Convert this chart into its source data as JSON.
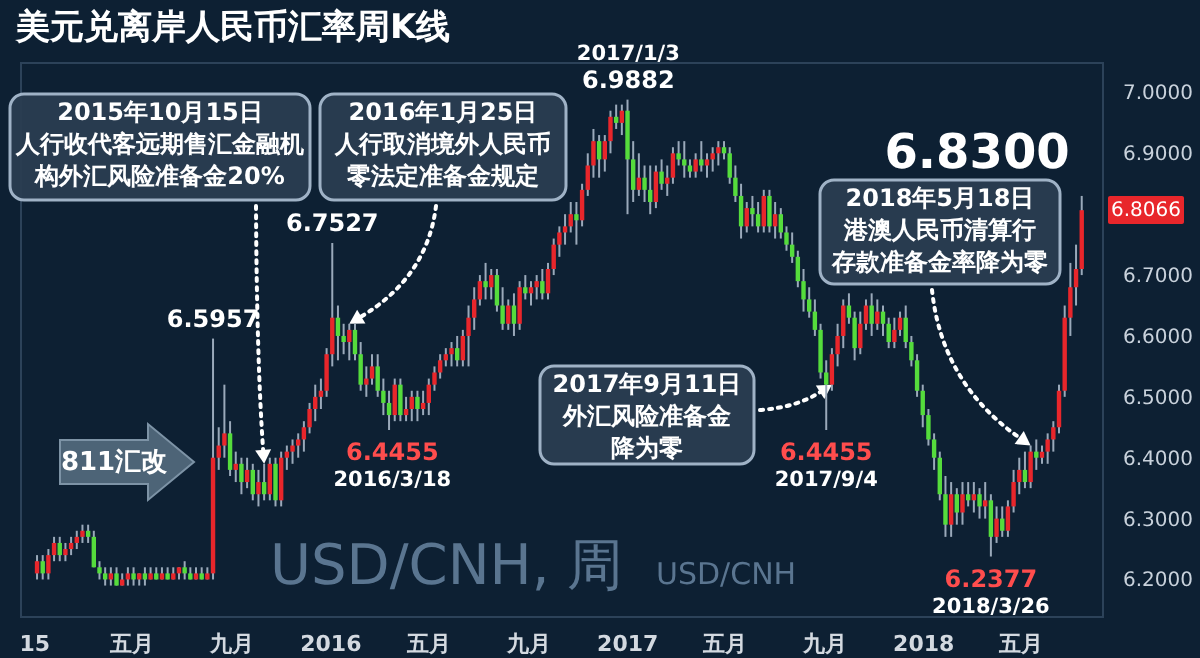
{
  "chart_data": {
    "type": "candlestick",
    "title": "美元兑离岸人民币汇率周K线",
    "x": [
      "2015-01-05",
      "2015-01-12",
      "2015-01-19",
      "2015-01-26",
      "2015-02-02",
      "2015-02-09",
      "2015-02-16",
      "2015-02-23",
      "2015-03-02",
      "2015-03-09",
      "2015-03-16",
      "2015-03-23",
      "2015-03-30",
      "2015-04-06",
      "2015-04-13",
      "2015-04-20",
      "2015-04-27",
      "2015-05-04",
      "2015-05-11",
      "2015-05-18",
      "2015-05-25",
      "2015-06-01",
      "2015-06-08",
      "2015-06-15",
      "2015-06-22",
      "2015-06-29",
      "2015-07-06",
      "2015-07-13",
      "2015-07-20",
      "2015-07-27",
      "2015-08-03",
      "2015-08-10",
      "2015-08-17",
      "2015-08-24",
      "2015-08-31",
      "2015-09-07",
      "2015-09-14",
      "2015-09-21",
      "2015-09-28",
      "2015-10-05",
      "2015-10-12",
      "2015-10-19",
      "2015-10-26",
      "2015-11-02",
      "2015-11-09",
      "2015-11-16",
      "2015-11-23",
      "2015-11-30",
      "2015-12-07",
      "2015-12-14",
      "2015-12-21",
      "2015-12-28",
      "2016-01-04",
      "2016-01-11",
      "2016-01-18",
      "2016-01-25",
      "2016-02-01",
      "2016-02-08",
      "2016-02-15",
      "2016-02-22",
      "2016-02-29",
      "2016-03-07",
      "2016-03-14",
      "2016-03-21",
      "2016-03-28",
      "2016-04-04",
      "2016-04-11",
      "2016-04-18",
      "2016-04-25",
      "2016-05-02",
      "2016-05-09",
      "2016-05-16",
      "2016-05-23",
      "2016-05-30",
      "2016-06-06",
      "2016-06-13",
      "2016-06-20",
      "2016-06-27",
      "2016-07-04",
      "2016-07-11",
      "2016-07-18",
      "2016-07-25",
      "2016-08-01",
      "2016-08-08",
      "2016-08-15",
      "2016-08-22",
      "2016-08-29",
      "2016-09-05",
      "2016-09-12",
      "2016-09-19",
      "2016-09-26",
      "2016-10-03",
      "2016-10-10",
      "2016-10-17",
      "2016-10-24",
      "2016-10-31",
      "2016-11-07",
      "2016-11-14",
      "2016-11-21",
      "2016-11-28",
      "2016-12-05",
      "2016-12-12",
      "2016-12-19",
      "2016-12-26",
      "2017-01-02",
      "2017-01-09",
      "2017-01-16",
      "2017-01-23",
      "2017-01-30",
      "2017-02-06",
      "2017-02-13",
      "2017-02-20",
      "2017-02-27",
      "2017-03-06",
      "2017-03-13",
      "2017-03-20",
      "2017-03-27",
      "2017-04-03",
      "2017-04-10",
      "2017-04-17",
      "2017-04-24",
      "2017-05-01",
      "2017-05-08",
      "2017-05-15",
      "2017-05-22",
      "2017-05-29",
      "2017-06-05",
      "2017-06-12",
      "2017-06-19",
      "2017-06-26",
      "2017-07-03",
      "2017-07-10",
      "2017-07-17",
      "2017-07-24",
      "2017-07-31",
      "2017-08-07",
      "2017-08-14",
      "2017-08-21",
      "2017-08-28",
      "2017-09-04",
      "2017-09-11",
      "2017-09-18",
      "2017-09-25",
      "2017-10-02",
      "2017-10-09",
      "2017-10-16",
      "2017-10-23",
      "2017-10-30",
      "2017-11-06",
      "2017-11-13",
      "2017-11-20",
      "2017-11-27",
      "2017-12-04",
      "2017-12-11",
      "2017-12-18",
      "2017-12-25",
      "2018-01-01",
      "2018-01-08",
      "2018-01-15",
      "2018-01-22",
      "2018-01-29",
      "2018-02-05",
      "2018-02-12",
      "2018-02-19",
      "2018-02-26",
      "2018-03-05",
      "2018-03-12",
      "2018-03-19",
      "2018-03-26",
      "2018-04-02",
      "2018-04-09",
      "2018-04-16",
      "2018-04-23",
      "2018-04-30",
      "2018-05-07",
      "2018-05-14",
      "2018-05-21",
      "2018-05-28",
      "2018-06-04",
      "2018-06-11",
      "2018-06-18",
      "2018-06-25",
      "2018-07-02",
      "2018-07-09",
      "2018-07-16"
    ],
    "ohlc": [
      [
        6.21,
        6.24,
        6.2,
        6.23
      ],
      [
        6.23,
        6.24,
        6.2,
        6.21
      ],
      [
        6.21,
        6.25,
        6.2,
        6.24
      ],
      [
        6.24,
        6.27,
        6.23,
        6.26
      ],
      [
        6.26,
        6.27,
        6.23,
        6.24
      ],
      [
        6.24,
        6.26,
        6.23,
        6.25
      ],
      [
        6.25,
        6.27,
        6.24,
        6.26
      ],
      [
        6.26,
        6.28,
        6.25,
        6.27
      ],
      [
        6.27,
        6.29,
        6.26,
        6.28
      ],
      [
        6.28,
        6.29,
        6.26,
        6.27
      ],
      [
        6.27,
        6.28,
        6.22,
        6.22
      ],
      [
        6.22,
        6.23,
        6.2,
        6.21
      ],
      [
        6.21,
        6.22,
        6.19,
        6.2
      ],
      [
        6.2,
        6.22,
        6.19,
        6.21
      ],
      [
        6.21,
        6.22,
        6.19,
        6.19
      ],
      [
        6.19,
        6.21,
        6.19,
        6.2
      ],
      [
        6.2,
        6.22,
        6.19,
        6.21
      ],
      [
        6.21,
        6.22,
        6.19,
        6.2
      ],
      [
        6.2,
        6.21,
        6.19,
        6.21
      ],
      [
        6.21,
        6.22,
        6.19,
        6.2
      ],
      [
        6.2,
        6.22,
        6.2,
        6.21
      ],
      [
        6.21,
        6.22,
        6.2,
        6.2
      ],
      [
        6.2,
        6.22,
        6.2,
        6.21
      ],
      [
        6.21,
        6.22,
        6.2,
        6.2
      ],
      [
        6.2,
        6.22,
        6.2,
        6.21
      ],
      [
        6.21,
        6.22,
        6.2,
        6.22
      ],
      [
        6.22,
        6.23,
        6.2,
        6.21
      ],
      [
        6.21,
        6.22,
        6.2,
        6.2
      ],
      [
        6.2,
        6.22,
        6.2,
        6.21
      ],
      [
        6.21,
        6.22,
        6.2,
        6.2
      ],
      [
        6.2,
        6.22,
        6.2,
        6.21
      ],
      [
        6.21,
        6.5957,
        6.2,
        6.4
      ],
      [
        6.4,
        6.45,
        6.38,
        6.42
      ],
      [
        6.42,
        6.52,
        6.4,
        6.44
      ],
      [
        6.44,
        6.46,
        6.37,
        6.38
      ],
      [
        6.38,
        6.41,
        6.36,
        6.39
      ],
      [
        6.39,
        6.4,
        6.34,
        6.36
      ],
      [
        6.36,
        6.4,
        6.35,
        6.38
      ],
      [
        6.38,
        6.39,
        6.33,
        6.34
      ],
      [
        6.34,
        6.38,
        6.32,
        6.36
      ],
      [
        6.36,
        6.39,
        6.33,
        6.34
      ],
      [
        6.34,
        6.4,
        6.33,
        6.39
      ],
      [
        6.39,
        6.4,
        6.32,
        6.33
      ],
      [
        6.33,
        6.41,
        6.32,
        6.4
      ],
      [
        6.4,
        6.42,
        6.38,
        6.41
      ],
      [
        6.41,
        6.43,
        6.39,
        6.42
      ],
      [
        6.42,
        6.44,
        6.4,
        6.43
      ],
      [
        6.43,
        6.46,
        6.41,
        6.45
      ],
      [
        6.45,
        6.49,
        6.44,
        6.48
      ],
      [
        6.48,
        6.52,
        6.46,
        6.5
      ],
      [
        6.5,
        6.53,
        6.48,
        6.51
      ],
      [
        6.51,
        6.58,
        6.5,
        6.57
      ],
      [
        6.57,
        6.7527,
        6.55,
        6.63
      ],
      [
        6.63,
        6.65,
        6.56,
        6.6
      ],
      [
        6.6,
        6.62,
        6.57,
        6.59
      ],
      [
        6.59,
        6.62,
        6.56,
        6.61
      ],
      [
        6.61,
        6.62,
        6.56,
        6.57
      ],
      [
        6.57,
        6.59,
        6.51,
        6.52
      ],
      [
        6.52,
        6.55,
        6.5,
        6.53
      ],
      [
        6.53,
        6.57,
        6.52,
        6.55
      ],
      [
        6.55,
        6.57,
        6.5,
        6.51
      ],
      [
        6.51,
        6.53,
        6.47,
        6.49
      ],
      [
        6.49,
        6.51,
        6.4455,
        6.47
      ],
      [
        6.47,
        6.53,
        6.46,
        6.52
      ],
      [
        6.52,
        6.53,
        6.46,
        6.47
      ],
      [
        6.47,
        6.5,
        6.46,
        6.48
      ],
      [
        6.48,
        6.51,
        6.46,
        6.5
      ],
      [
        6.5,
        6.51,
        6.46,
        6.48
      ],
      [
        6.48,
        6.51,
        6.47,
        6.49
      ],
      [
        6.49,
        6.53,
        6.47,
        6.52
      ],
      [
        6.52,
        6.55,
        6.51,
        6.54
      ],
      [
        6.54,
        6.57,
        6.53,
        6.56
      ],
      [
        6.56,
        6.58,
        6.55,
        6.57
      ],
      [
        6.57,
        6.59,
        6.55,
        6.58
      ],
      [
        6.58,
        6.6,
        6.55,
        6.56
      ],
      [
        6.56,
        6.61,
        6.55,
        6.6
      ],
      [
        6.6,
        6.65,
        6.55,
        6.63
      ],
      [
        6.63,
        6.68,
        6.61,
        6.66
      ],
      [
        6.66,
        6.7,
        6.65,
        6.69
      ],
      [
        6.69,
        6.72,
        6.66,
        6.68
      ],
      [
        6.68,
        6.71,
        6.66,
        6.7
      ],
      [
        6.7,
        6.71,
        6.64,
        6.65
      ],
      [
        6.65,
        6.68,
        6.61,
        6.62
      ],
      [
        6.62,
        6.66,
        6.61,
        6.65
      ],
      [
        6.65,
        6.67,
        6.6,
        6.62
      ],
      [
        6.62,
        6.69,
        6.61,
        6.68
      ],
      [
        6.68,
        6.7,
        6.66,
        6.67
      ],
      [
        6.67,
        6.69,
        6.65,
        6.68
      ],
      [
        6.68,
        6.7,
        6.66,
        6.69
      ],
      [
        6.69,
        6.71,
        6.66,
        6.67
      ],
      [
        6.67,
        6.72,
        6.66,
        6.71
      ],
      [
        6.71,
        6.76,
        6.7,
        6.75
      ],
      [
        6.75,
        6.78,
        6.73,
        6.77
      ],
      [
        6.77,
        6.8,
        6.75,
        6.78
      ],
      [
        6.78,
        6.82,
        6.77,
        6.8
      ],
      [
        6.8,
        6.82,
        6.75,
        6.79
      ],
      [
        6.79,
        6.85,
        6.78,
        6.84
      ],
      [
        6.84,
        6.9,
        6.83,
        6.88
      ],
      [
        6.88,
        6.94,
        6.86,
        6.92
      ],
      [
        6.92,
        6.93,
        6.86,
        6.89
      ],
      [
        6.89,
        6.93,
        6.87,
        6.92
      ],
      [
        6.92,
        6.97,
        6.9,
        6.96
      ],
      [
        6.96,
        6.98,
        6.94,
        6.95
      ],
      [
        6.95,
        6.98,
        6.93,
        6.97
      ],
      [
        6.97,
        6.9882,
        6.8,
        6.89
      ],
      [
        6.89,
        6.92,
        6.82,
        6.84
      ],
      [
        6.84,
        6.9,
        6.83,
        6.86
      ],
      [
        6.86,
        6.88,
        6.82,
        6.84
      ],
      [
        6.84,
        6.88,
        6.8,
        6.82
      ],
      [
        6.82,
        6.88,
        6.81,
        6.87
      ],
      [
        6.87,
        6.89,
        6.84,
        6.85
      ],
      [
        6.85,
        6.88,
        6.83,
        6.86
      ],
      [
        6.86,
        6.91,
        6.85,
        6.9
      ],
      [
        6.9,
        6.92,
        6.88,
        6.89
      ],
      [
        6.89,
        6.92,
        6.86,
        6.88
      ],
      [
        6.88,
        6.89,
        6.86,
        6.87
      ],
      [
        6.87,
        6.9,
        6.86,
        6.89
      ],
      [
        6.89,
        6.92,
        6.87,
        6.88
      ],
      [
        6.88,
        6.9,
        6.86,
        6.89
      ],
      [
        6.89,
        6.91,
        6.87,
        6.9
      ],
      [
        6.9,
        6.92,
        6.88,
        6.91
      ],
      [
        6.91,
        6.92,
        6.89,
        6.9
      ],
      [
        6.9,
        6.91,
        6.85,
        6.86
      ],
      [
        6.86,
        6.88,
        6.82,
        6.83
      ],
      [
        6.83,
        6.85,
        6.76,
        6.78
      ],
      [
        6.78,
        6.82,
        6.77,
        6.81
      ],
      [
        6.81,
        6.83,
        6.78,
        6.8
      ],
      [
        6.8,
        6.82,
        6.77,
        6.78
      ],
      [
        6.78,
        6.84,
        6.77,
        6.83
      ],
      [
        6.83,
        6.84,
        6.77,
        6.78
      ],
      [
        6.78,
        6.82,
        6.76,
        6.8
      ],
      [
        6.8,
        6.81,
        6.76,
        6.77
      ],
      [
        6.77,
        6.78,
        6.74,
        6.75
      ],
      [
        6.75,
        6.77,
        6.72,
        6.73
      ],
      [
        6.73,
        6.74,
        6.68,
        6.69
      ],
      [
        6.69,
        6.71,
        6.64,
        6.66
      ],
      [
        6.66,
        6.68,
        6.63,
        6.64
      ],
      [
        6.64,
        6.66,
        6.6,
        6.61
      ],
      [
        6.61,
        6.62,
        6.53,
        6.54
      ],
      [
        6.54,
        6.56,
        6.4455,
        6.52
      ],
      [
        6.52,
        6.58,
        6.51,
        6.57
      ],
      [
        6.57,
        6.62,
        6.55,
        6.6
      ],
      [
        6.6,
        6.66,
        6.58,
        6.65
      ],
      [
        6.65,
        6.67,
        6.62,
        6.63
      ],
      [
        6.63,
        6.64,
        6.56,
        6.58
      ],
      [
        6.58,
        6.64,
        6.57,
        6.62
      ],
      [
        6.62,
        6.66,
        6.61,
        6.65
      ],
      [
        6.65,
        6.67,
        6.6,
        6.62
      ],
      [
        6.62,
        6.66,
        6.61,
        6.64
      ],
      [
        6.64,
        6.65,
        6.6,
        6.62
      ],
      [
        6.62,
        6.63,
        6.58,
        6.59
      ],
      [
        6.59,
        6.63,
        6.58,
        6.61
      ],
      [
        6.61,
        6.64,
        6.6,
        6.63
      ],
      [
        6.63,
        6.65,
        6.58,
        6.59
      ],
      [
        6.59,
        6.6,
        6.55,
        6.56
      ],
      [
        6.56,
        6.57,
        6.5,
        6.51
      ],
      [
        6.51,
        6.52,
        6.45,
        6.47
      ],
      [
        6.47,
        6.48,
        6.42,
        6.43
      ],
      [
        6.43,
        6.44,
        6.38,
        6.4
      ],
      [
        6.4,
        6.41,
        6.33,
        6.34
      ],
      [
        6.34,
        6.37,
        6.27,
        6.29
      ],
      [
        6.29,
        6.36,
        6.27,
        6.34
      ],
      [
        6.34,
        6.35,
        6.29,
        6.31
      ],
      [
        6.31,
        6.36,
        6.29,
        6.34
      ],
      [
        6.34,
        6.36,
        6.32,
        6.33
      ],
      [
        6.33,
        6.36,
        6.31,
        6.34
      ],
      [
        6.34,
        6.35,
        6.3,
        6.32
      ],
      [
        6.32,
        6.36,
        6.3,
        6.33
      ],
      [
        6.33,
        6.34,
        6.2377,
        6.27
      ],
      [
        6.27,
        6.32,
        6.26,
        6.3
      ],
      [
        6.3,
        6.32,
        6.27,
        6.28
      ],
      [
        6.28,
        6.33,
        6.27,
        6.32
      ],
      [
        6.32,
        6.38,
        6.31,
        6.36
      ],
      [
        6.36,
        6.4,
        6.34,
        6.38
      ],
      [
        6.38,
        6.41,
        6.35,
        6.36
      ],
      [
        6.36,
        6.42,
        6.35,
        6.41
      ],
      [
        6.41,
        6.43,
        6.38,
        6.4
      ],
      [
        6.4,
        6.42,
        6.39,
        6.41
      ],
      [
        6.41,
        6.44,
        6.39,
        6.43
      ],
      [
        6.43,
        6.46,
        6.41,
        6.45
      ],
      [
        6.45,
        6.52,
        6.44,
        6.51
      ],
      [
        6.51,
        6.65,
        6.5,
        6.63
      ],
      [
        6.63,
        6.72,
        6.6,
        6.68
      ],
      [
        6.68,
        6.75,
        6.65,
        6.71
      ],
      [
        6.71,
        6.83,
        6.7,
        6.8066
      ]
    ],
    "xlim": [
      "2014-12-15",
      "2018-08-10"
    ],
    "ylim": [
      6.14,
      7.05
    ],
    "xticks": [
      {
        "value": "2015-01-01",
        "label": "15"
      },
      {
        "value": "2015-05-01",
        "label": "五月"
      },
      {
        "value": "2015-09-01",
        "label": "九月"
      },
      {
        "value": "2016-01-01",
        "label": "2016"
      },
      {
        "value": "2016-05-01",
        "label": "五月"
      },
      {
        "value": "2016-09-01",
        "label": "九月"
      },
      {
        "value": "2017-01-01",
        "label": "2017"
      },
      {
        "value": "2017-05-01",
        "label": "五月"
      },
      {
        "value": "2017-09-01",
        "label": "九月"
      },
      {
        "value": "2018-01-01",
        "label": "2018"
      },
      {
        "value": "2018-05-01",
        "label": "五月"
      }
    ],
    "yticks": [
      {
        "value": 6.2,
        "label": "6.2000"
      },
      {
        "value": 6.3,
        "label": "6.3000"
      },
      {
        "value": 6.4,
        "label": "6.4000"
      },
      {
        "value": 6.5,
        "label": "6.5000"
      },
      {
        "value": 6.6,
        "label": "6.6000"
      },
      {
        "value": 6.7,
        "label": "6.7000"
      },
      {
        "value": 6.9,
        "label": "6.9000"
      },
      {
        "value": 7,
        "label": "7.0000"
      }
    ],
    "annotations": [
      {
        "text": "2015年10月15日人行收代客远期售汇金融机构外汇风险准备金20%",
        "x": "2015-10-12",
        "y": 6.39
      },
      {
        "text": "2016年1月25日人行取消境外人民币零法定准备金规定",
        "x": "2016-01-25",
        "y": 6.62
      },
      {
        "text": "2018年5月18日港澳人民币清算行存款准备金率降为零",
        "x": "2018-05-14",
        "y": 6.42
      },
      {
        "text": "2017年9月11日外汇风险准备金降为零",
        "x": "2017-09-11",
        "y": 6.52
      },
      "811汇改",
      "USD/CNH, 周",
      "USD/CNH",
      {
        "text": "6.8300",
        "x": "2018-07-16",
        "y": 6.83
      },
      "6.8066",
      {
        "text": "6.5957",
        "x": "2015-08-10",
        "y": 6.5957
      },
      {
        "text": "6.7527",
        "x": "2016-01-04",
        "y": 6.7527
      },
      {
        "text": "6.4455",
        "x": "2016-03-18",
        "y": 6.4455
      },
      {
        "text": "2016/3/18",
        "x": "2016-03-18",
        "y": 6.4455
      },
      {
        "text": "2017/1/3",
        "x": "2017-01-03",
        "y": 6.9882
      },
      {
        "text": "6.9882",
        "x": "2017-01-03",
        "y": 6.9882
      },
      {
        "text": "6.4455",
        "x": "2017-09-04",
        "y": 6.4455
      },
      {
        "text": "2017/9/4",
        "x": "2017-09-04",
        "y": 6.4455
      },
      {
        "text": "6.2377",
        "x": "2018-03-26",
        "y": 6.2377
      },
      {
        "text": "2018/3/26",
        "x": "2018-03-26",
        "y": 6.2377
      }
    ]
  }
}
